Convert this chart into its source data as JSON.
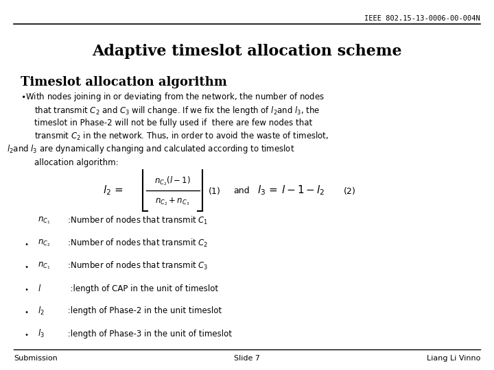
{
  "bg_color": "#ffffff",
  "header_text": "IEEE 802.15-13-0006-00-004N",
  "header_fontsize": 7.5,
  "title": "Adaptive timeslot allocation scheme",
  "title_fontsize": 16,
  "subtitle": "Timeslot allocation algorithm",
  "subtitle_fontsize": 13,
  "footer_left": "Submission",
  "footer_center": "Slide 7",
  "footer_right": "Liang Li Vinno",
  "footer_fontsize": 8
}
